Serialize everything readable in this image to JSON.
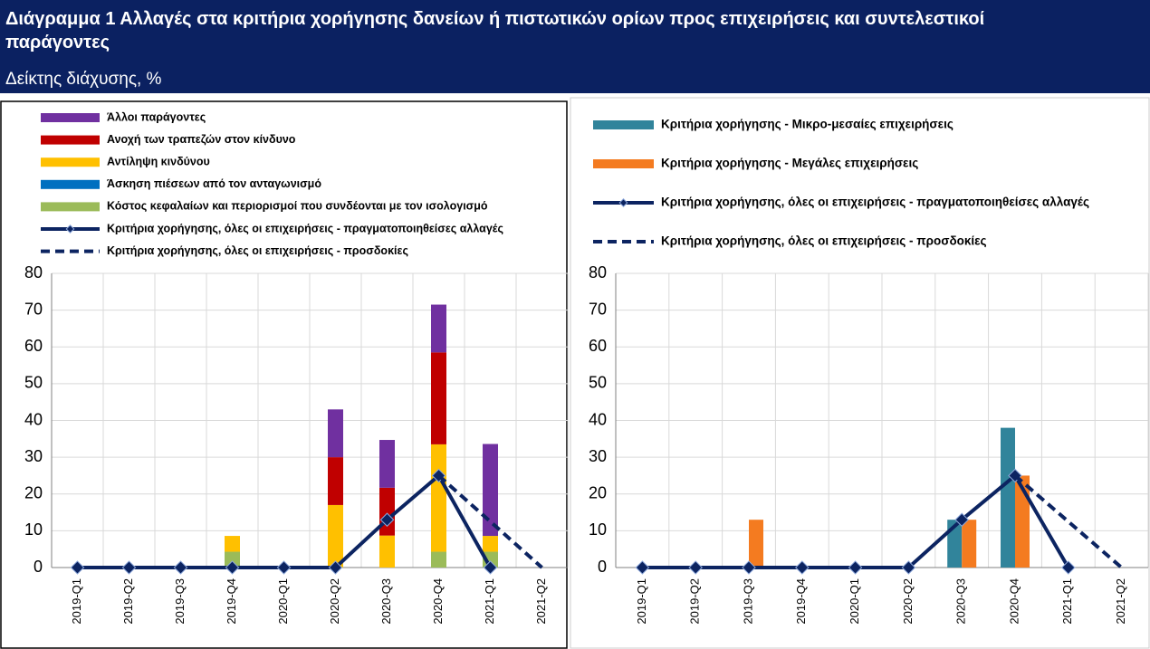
{
  "header": {
    "title": "Διάγραμμα 1 Αλλαγές στα κριτήρια χορήγησης δανείων ή πιστωτικών ορίων προς επιχειρήσεις και συντελεστικοί παράγοντες",
    "subtitle": "Δείκτης διάχυσης, %"
  },
  "chart_data": [
    {
      "type": "bar",
      "stacked": true,
      "ylim": [
        0,
        80
      ],
      "yticks": [
        0,
        10,
        20,
        30,
        40,
        50,
        60,
        70,
        80
      ],
      "grid": true,
      "categories": [
        "2019-Q1",
        "2019-Q2",
        "2019-Q3",
        "2019-Q4",
        "2020-Q1",
        "2020-Q2",
        "2020-Q3",
        "2020-Q4",
        "2021-Q1",
        "2021-Q2"
      ],
      "series": [
        {
          "name": "Άλλοι παράγοντες",
          "color": "#7030a0",
          "kind": "bar",
          "stack_order": 4,
          "values": [
            0,
            0,
            0,
            0,
            0,
            13,
            13,
            13,
            25,
            0
          ]
        },
        {
          "name": "Ανοχή των τραπεζών στον κίνδυνο",
          "color": "#c00000",
          "kind": "bar",
          "stack_order": 3,
          "values": [
            0,
            0,
            0,
            0,
            0,
            13,
            13,
            25,
            0,
            0
          ]
        },
        {
          "name": "Αντίληψη κινδύνου",
          "color": "#ffc000",
          "kind": "bar",
          "stack_order": 2,
          "values": [
            0,
            0,
            0,
            4.3,
            0,
            17,
            8.7,
            29.2,
            4.3,
            0
          ]
        },
        {
          "name": "Άσκηση πιέσεων από τον ανταγωνισμό",
          "color": "#0070c0",
          "kind": "bar",
          "stack_order": 1,
          "values": [
            0,
            0,
            0,
            0,
            0,
            0,
            0,
            0,
            0,
            0
          ]
        },
        {
          "name": "Κόστος κεφαλαίων και περιορισμοί που συνδέονται με τον ισολογισμό",
          "color": "#9bbb59",
          "kind": "bar",
          "stack_order": 0,
          "values": [
            0,
            0,
            0,
            4.3,
            0,
            0,
            0,
            4.3,
            4.3,
            0
          ]
        },
        {
          "name": "Κριτήρια χορήγησης,  όλες οι επιχειρήσεις - πραγματοποιηθείσες αλλαγές",
          "color": "#0c2461",
          "kind": "line",
          "markers": true,
          "dashed": false,
          "values": [
            0,
            0,
            0,
            0,
            0,
            0,
            13,
            25,
            0,
            null
          ]
        },
        {
          "name": "Κριτήρια χορήγησης,  όλες οι επιχειρήσεις - προσδοκίες",
          "color": "#0c2461",
          "kind": "line",
          "markers": false,
          "dashed": true,
          "values": [
            null,
            null,
            null,
            null,
            null,
            null,
            null,
            25,
            12.5,
            0
          ]
        }
      ]
    },
    {
      "type": "bar",
      "stacked": false,
      "ylim": [
        0,
        80
      ],
      "yticks": [
        0,
        10,
        20,
        30,
        40,
        50,
        60,
        70,
        80
      ],
      "grid": true,
      "categories": [
        "2019-Q1",
        "2019-Q2",
        "2019-Q3",
        "2019-Q4",
        "2020-Q1",
        "2020-Q2",
        "2020-Q3",
        "2020-Q4",
        "2021-Q1",
        "2021-Q2"
      ],
      "series": [
        {
          "name": "Κριτήρια χορήγησης - Μικρο-μεσαίες επιχειρήσεις",
          "color": "#31849b",
          "kind": "bar",
          "values": [
            0,
            0,
            0,
            0,
            0,
            0,
            13,
            38,
            0,
            0
          ]
        },
        {
          "name": "Κριτήρια χορήγησης - Μεγάλες επιχειρήσεις",
          "color": "#f47b20",
          "kind": "bar",
          "values": [
            0,
            0,
            13,
            0,
            0,
            0,
            13,
            25,
            0,
            0
          ]
        },
        {
          "name": "Κριτήρια χορήγησης, όλες οι επιχειρήσεις - πραγματοποιηθείσες αλλαγές",
          "color": "#0c2461",
          "kind": "line",
          "markers": true,
          "dashed": false,
          "values": [
            0,
            0,
            0,
            0,
            0,
            0,
            13,
            25,
            0,
            null
          ]
        },
        {
          "name": "Κριτήρια χορήγησης, όλες οι επιχειρήσεις - προσδοκίες",
          "color": "#0c2461",
          "kind": "line",
          "markers": false,
          "dashed": true,
          "values": [
            null,
            null,
            null,
            null,
            null,
            null,
            null,
            25,
            12.5,
            0
          ]
        }
      ]
    }
  ]
}
